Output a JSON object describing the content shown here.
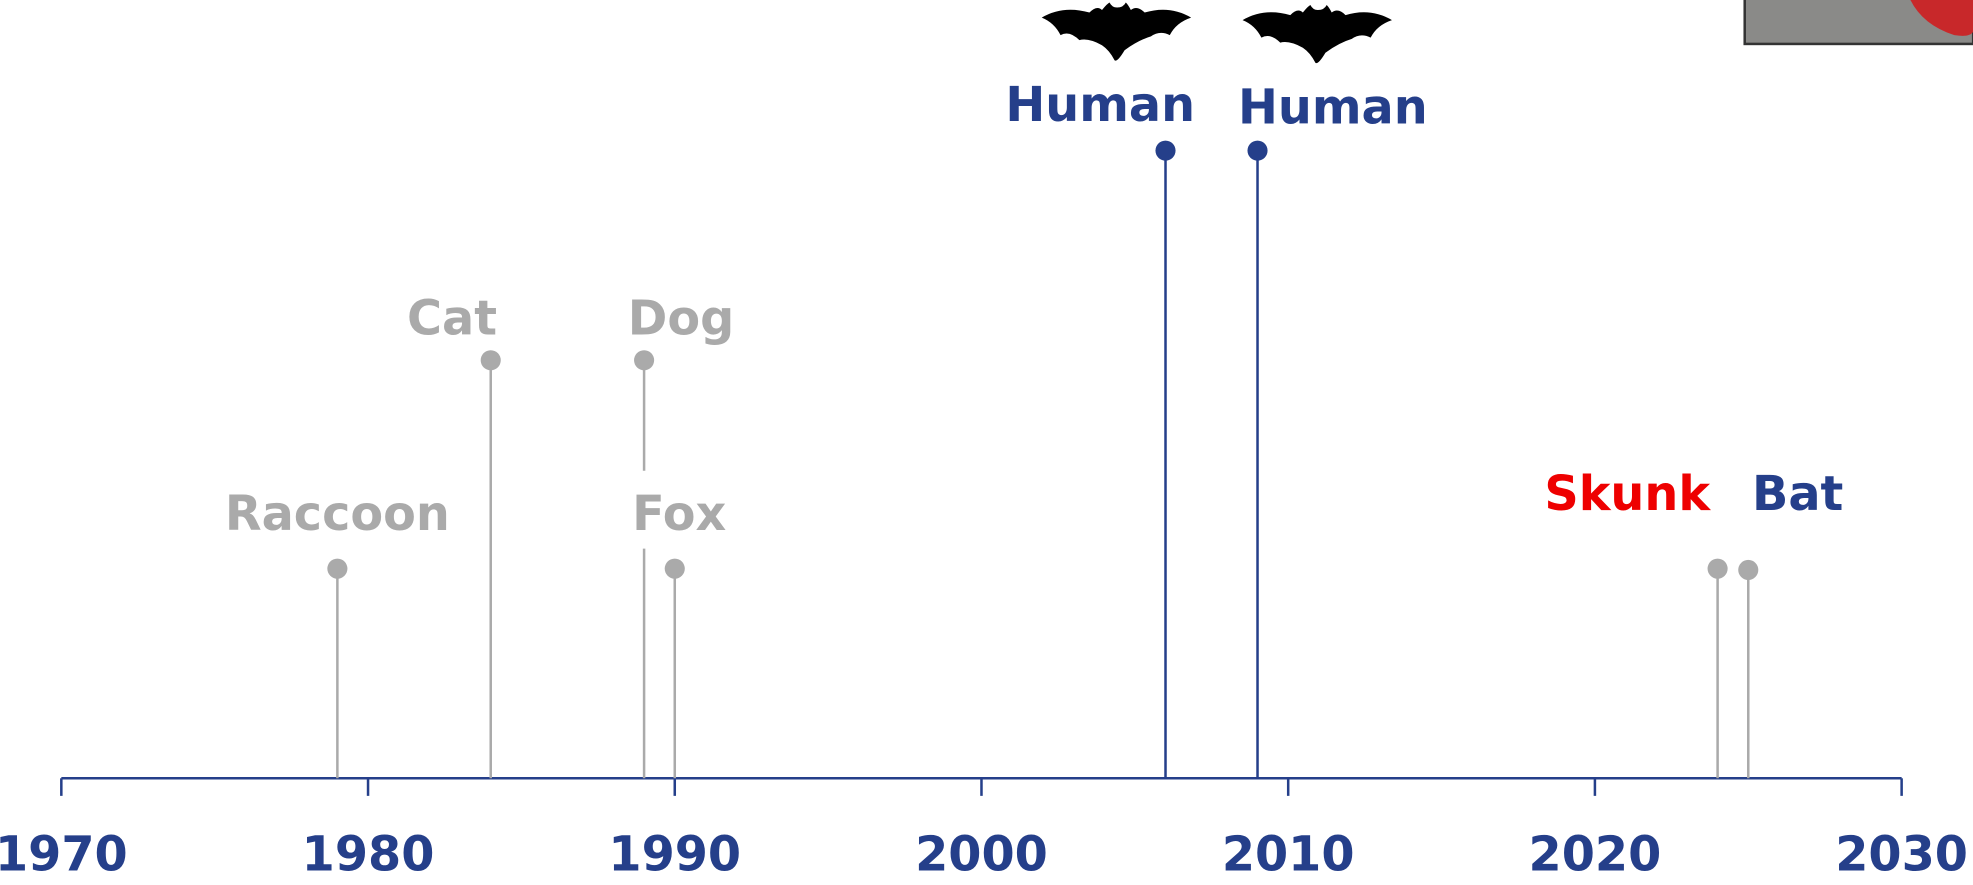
{
  "chart_data": {
    "type": "timeline",
    "xlim": [
      1970,
      2030
    ],
    "xticks": [
      1970,
      1980,
      1990,
      2000,
      2010,
      2020,
      2030
    ],
    "axis_color": "#253f8a",
    "events": [
      {
        "label": "Raccoon",
        "x": 1979,
        "color": "#aaaaaa",
        "label_color": "#aaaaaa"
      },
      {
        "label": "Cat",
        "x": 1984,
        "color": "#aaaaaa",
        "label_color": "#aaaaaa"
      },
      {
        "label": "Dog",
        "x": 1989,
        "color": "#aaaaaa",
        "label_color": "#aaaaaa"
      },
      {
        "label": "Fox",
        "x": 1990,
        "color": "#aaaaaa",
        "label_color": "#aaaaaa"
      },
      {
        "label": "Human",
        "x": 2006,
        "color": "#253f8a",
        "label_color": "#253f8a"
      },
      {
        "label": "Human",
        "x": 2009,
        "color": "#253f8a",
        "label_color": "#253f8a"
      },
      {
        "label": "Skunk",
        "x": 2024,
        "color": "#aaaaaa",
        "label_color": "#ee0000"
      },
      {
        "label": "Bat",
        "x": 2025,
        "color": "#aaaaaa",
        "label_color": "#253f8a"
      }
    ]
  }
}
